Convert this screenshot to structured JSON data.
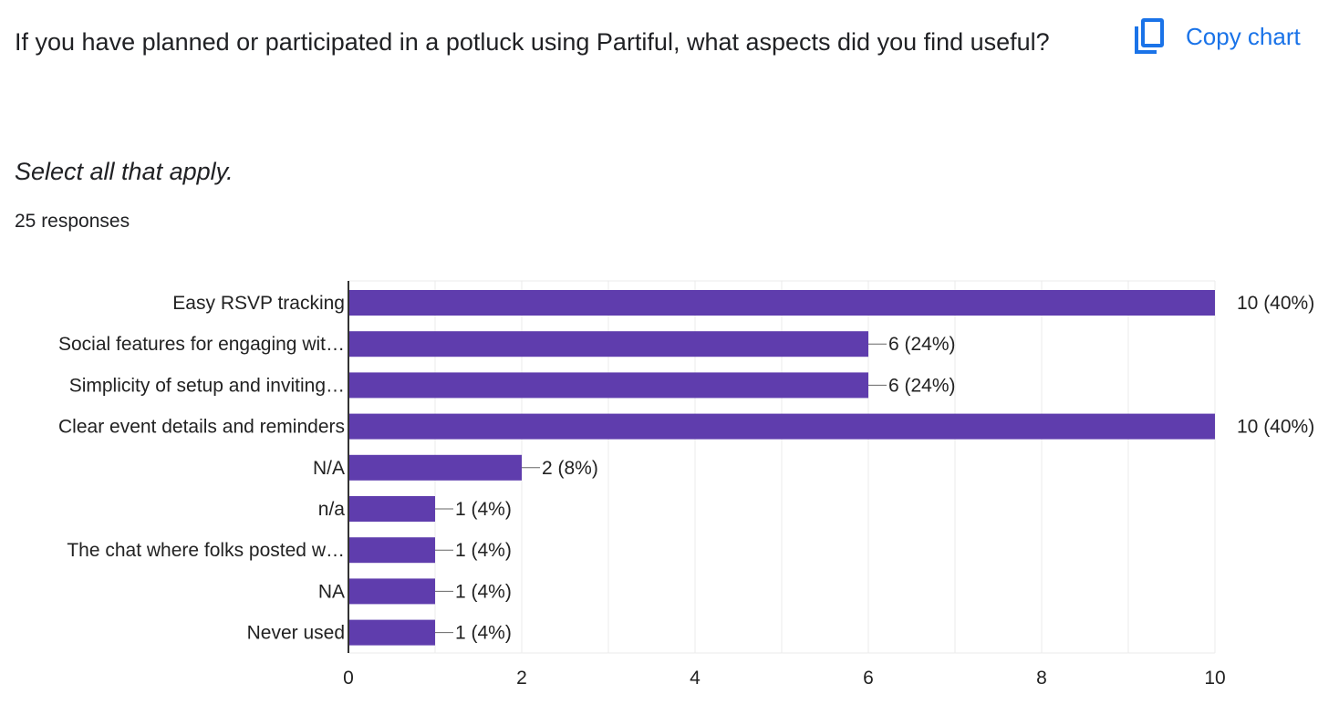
{
  "question": {
    "title": "If you have planned or participated in a potluck using Partiful, what aspects did you find useful?",
    "description": "Select all that apply.",
    "responses": "25 responses"
  },
  "toolbar": {
    "copy_label": "Copy chart",
    "copy_icon": "copy-icon",
    "accent_color": "#1a73e8"
  },
  "chart_data": {
    "type": "bar",
    "orientation": "horizontal",
    "categories": [
      "Easy RSVP tracking",
      "Social features for engaging wit…",
      "Simplicity of setup and inviting…",
      "Clear event details and reminders",
      "N/A",
      "n/a",
      "The chat where folks posted w…",
      "NA",
      "Never used"
    ],
    "values": [
      10,
      6,
      6,
      10,
      2,
      1,
      1,
      1,
      1
    ],
    "value_labels": [
      "10 (40%)",
      "6 (24%)",
      "6 (24%)",
      "10 (40%)",
      "2 (8%)",
      "1 (4%)",
      "1 (4%)",
      "1 (4%)",
      "1 (4%)"
    ],
    "xlim": [
      0,
      10
    ],
    "xticks": [
      0,
      2,
      4,
      6,
      8,
      10
    ],
    "grid": true,
    "bar_color": "#5f3dad"
  }
}
